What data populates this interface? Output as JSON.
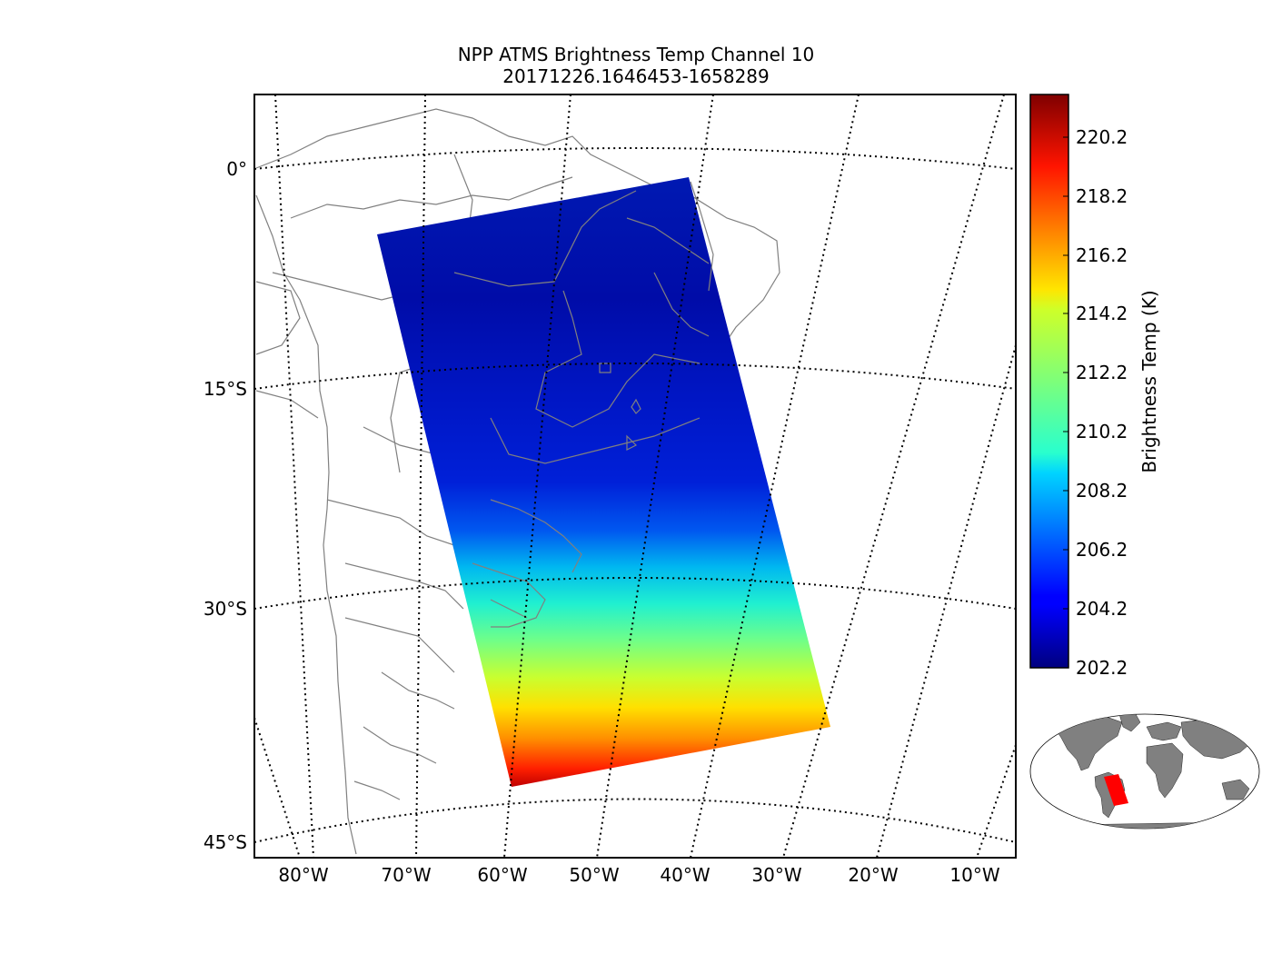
{
  "title": {
    "line1": "NPP ATMS Brightness Temp Channel 10",
    "line2": "20171226.1646453-1658289"
  },
  "map": {
    "lat_labels": [
      "0°",
      "15°S",
      "30°S",
      "45°S"
    ],
    "lon_labels": [
      "80°W",
      "70°W",
      "60°W",
      "50°W",
      "40°W",
      "30°W",
      "20°W",
      "10°W"
    ],
    "land_line_color": "#808080",
    "graticule_color": "#000000"
  },
  "colorbar": {
    "label": "Brightness Temp (K)",
    "ticks": [
      "220.2",
      "218.2",
      "216.2",
      "214.2",
      "212.2",
      "210.2",
      "208.2",
      "206.2",
      "204.2",
      "202.2"
    ],
    "min": 202.2,
    "max": 221.3,
    "colormap": "jet"
  },
  "inset": {
    "land_color": "#808080",
    "swath_color": "#ff0000"
  }
}
